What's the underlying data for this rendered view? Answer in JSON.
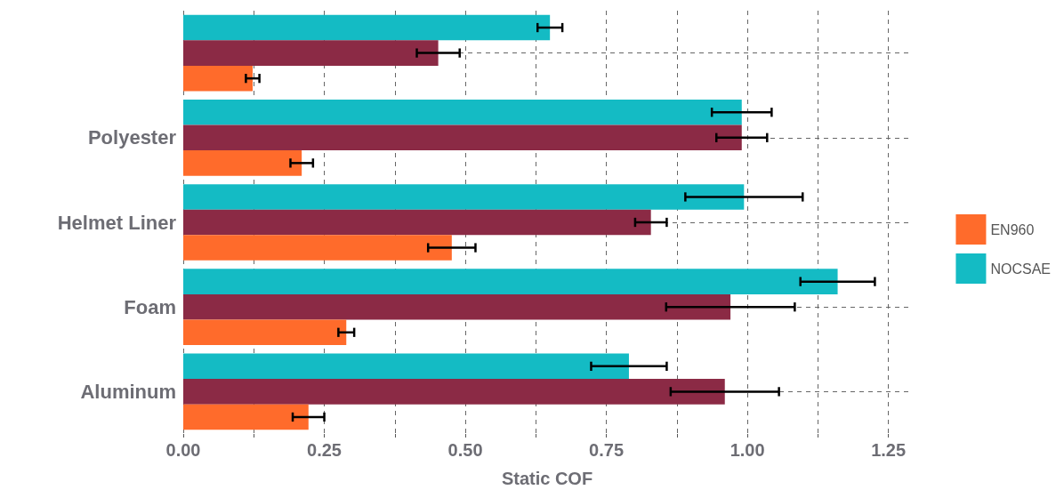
{
  "chart_data": {
    "type": "bar",
    "orientation": "horizontal",
    "xlabel": "Static COF",
    "categories": [
      null,
      "Polyester",
      "Helmet Liner",
      "Foam",
      "Aluminum"
    ],
    "series": [
      {
        "name": "EN960",
        "color": "#ff6b2b",
        "values": [
          0.123,
          0.21,
          0.476,
          0.289,
          0.222
        ],
        "errors": [
          0.012,
          0.02,
          0.042,
          0.014,
          0.028
        ]
      },
      {
        "color": "#8b2a45",
        "values": [
          0.452,
          0.99,
          0.829,
          0.97,
          0.96
        ],
        "errors": [
          0.038,
          0.045,
          0.028,
          0.114,
          0.096
        ]
      },
      {
        "name": "NOCSAE",
        "color": "#14bbc4",
        "values": [
          0.65,
          0.99,
          0.994,
          1.16,
          0.79
        ],
        "errors": [
          0.022,
          0.053,
          0.104,
          0.066,
          0.067
        ]
      }
    ],
    "xlim": [
      0,
      1.29
    ],
    "xticks": [
      {
        "value": 0,
        "label": "0.00"
      },
      {
        "value": 0.125,
        "label": null
      },
      {
        "value": 0.25,
        "label": "0.25"
      },
      {
        "value": 0.375,
        "label": null
      },
      {
        "value": 0.5,
        "label": "0.50"
      },
      {
        "value": 0.625,
        "label": null
      },
      {
        "value": 0.75,
        "label": "0.75"
      },
      {
        "value": 0.875,
        "label": null
      },
      {
        "value": 1,
        "label": "1.00"
      },
      {
        "value": 1.125,
        "label": null
      },
      {
        "value": 1.25,
        "label": "1.25"
      }
    ],
    "grid": true,
    "legend": "right"
  }
}
